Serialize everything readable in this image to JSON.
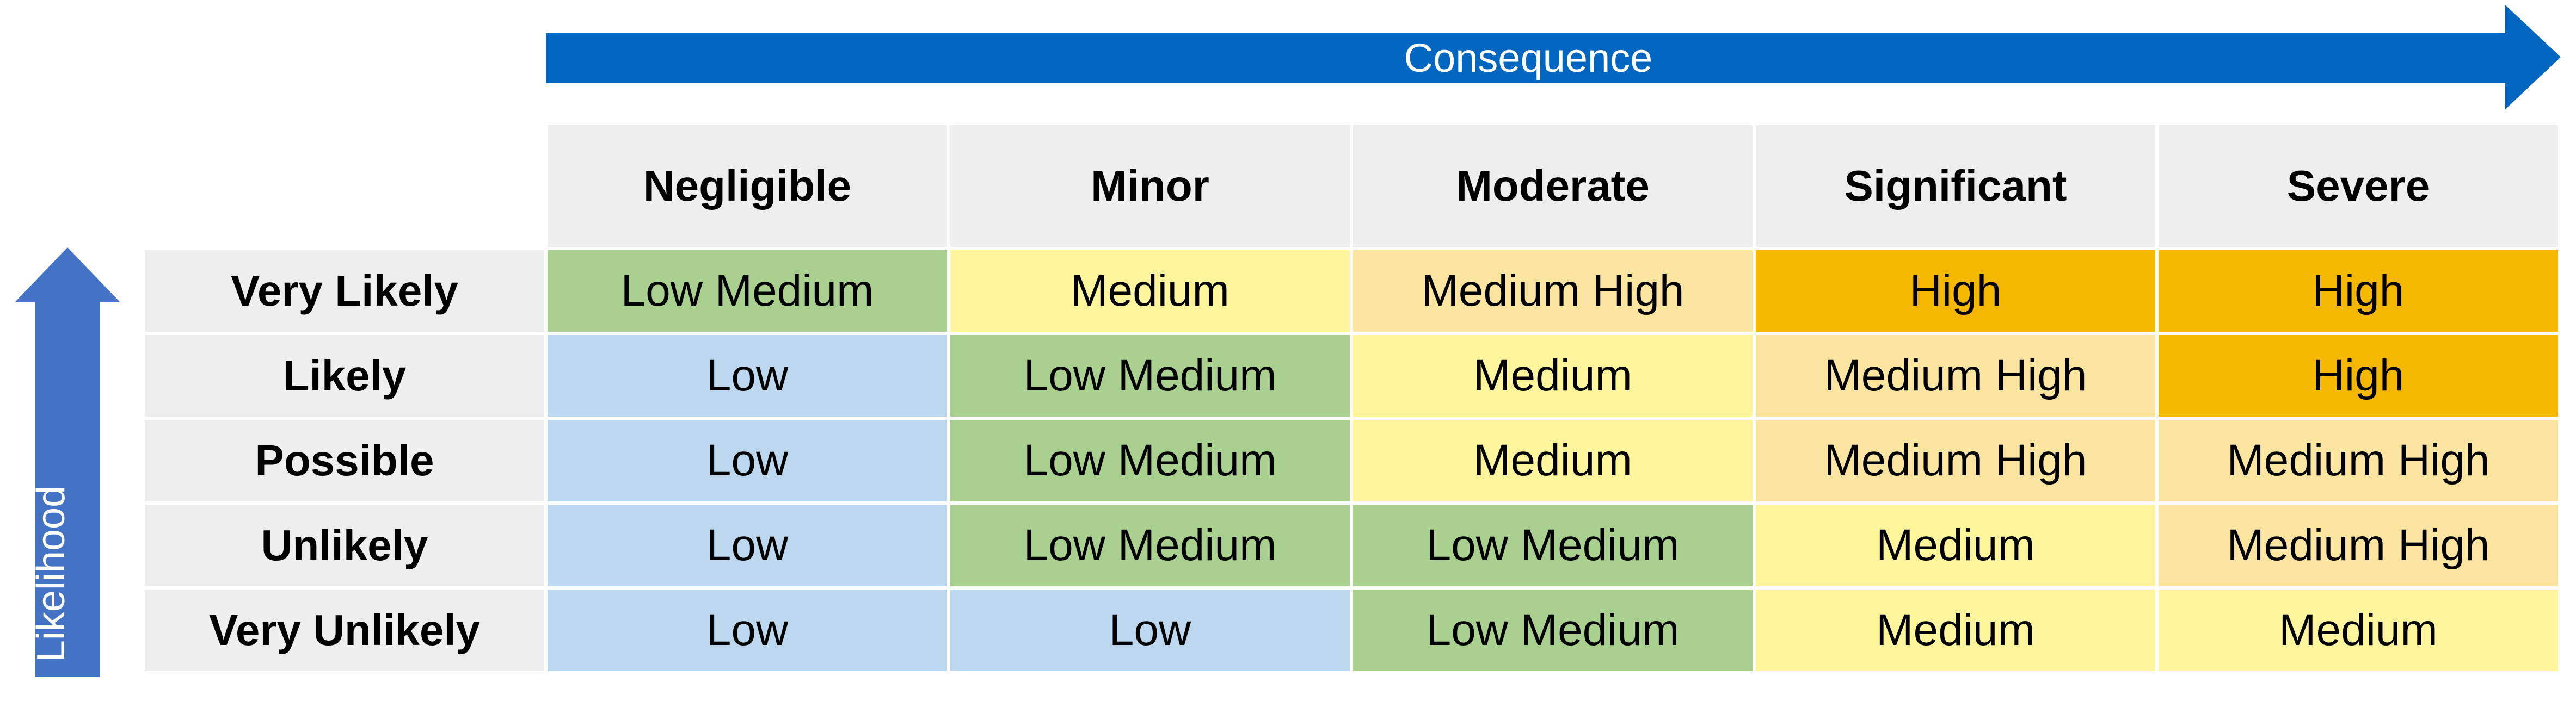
{
  "axes": {
    "consequence_label": "Consequence",
    "likelihood_label": "Likelihood",
    "arrow_color": "#0066c0",
    "arrow_color_vertical": "#4472c4"
  },
  "consequence_levels": [
    "Negligible",
    "Minor",
    "Moderate",
    "Significant",
    "Severe"
  ],
  "likelihood_levels": [
    "Very Likely",
    "Likely",
    "Possible",
    "Unlikely",
    "Very Unlikely"
  ],
  "risk_colors": {
    "Low": "#bdd7ee",
    "Low Medium": "#a9d08e",
    "Medium": "#fff59d",
    "Medium High": "#fbe5a0",
    "High": "#f5b800"
  },
  "matrix": [
    [
      "Low Medium",
      "Medium",
      "Medium High",
      "High",
      "High"
    ],
    [
      "Low",
      "Low Medium",
      "Medium",
      "Medium High",
      "High"
    ],
    [
      "Low",
      "Low Medium",
      "Medium",
      "Medium High",
      "Medium High"
    ],
    [
      "Low",
      "Low Medium",
      "Low Medium",
      "Medium",
      "Medium High"
    ],
    [
      "Low",
      "Low",
      "Low Medium",
      "Medium",
      "Medium"
    ]
  ]
}
